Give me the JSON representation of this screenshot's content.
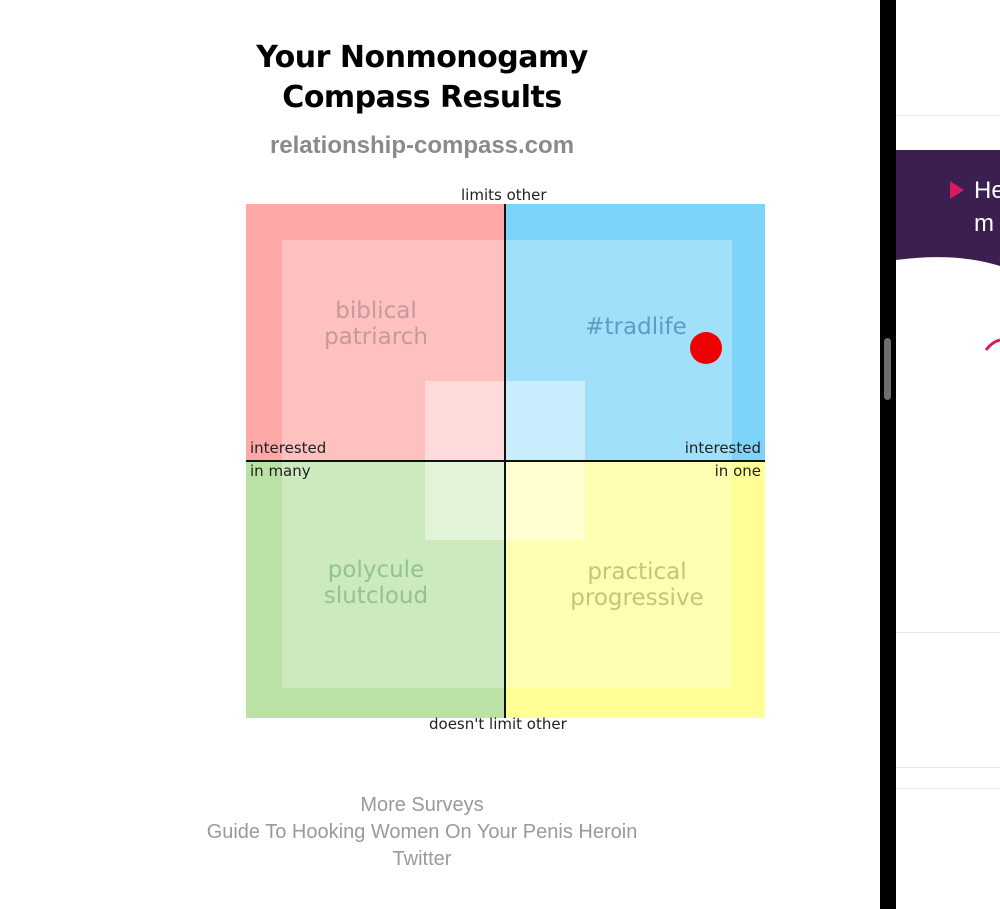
{
  "header": {
    "title_line1": "Your Nonmonogamy",
    "title_line2": "Compass Results",
    "site": "relationship-compass.com"
  },
  "compass": {
    "axes": {
      "top": "limits other",
      "bottom": "doesn't limit other",
      "left_line1": "interested",
      "left_line2": "in many",
      "right_line1": "interested",
      "right_line2": "in one"
    },
    "quadrants": {
      "top_left": {
        "line1": "biblical",
        "line2": "patriarch",
        "color": "#ffa8a8"
      },
      "top_right": {
        "line1": "#tradlife",
        "color": "#7dd4f8"
      },
      "bottom_left": {
        "line1": "polycule",
        "line2": "slutcloud",
        "color": "#b9e2a4"
      },
      "bottom_right": {
        "line1": "practical",
        "line2": "progressive",
        "color": "#ffff94"
      }
    },
    "result": {
      "color": "#f00000"
    }
  },
  "links": [
    "More Surveys",
    "Guide To Hooking Women On Your Penis Heroin",
    "Twitter"
  ],
  "right_pane": {
    "banner_text_line1": "He",
    "banner_text_line2": "m",
    "banner_color": "#3a1f4f",
    "accent_color": "#d81b60"
  }
}
